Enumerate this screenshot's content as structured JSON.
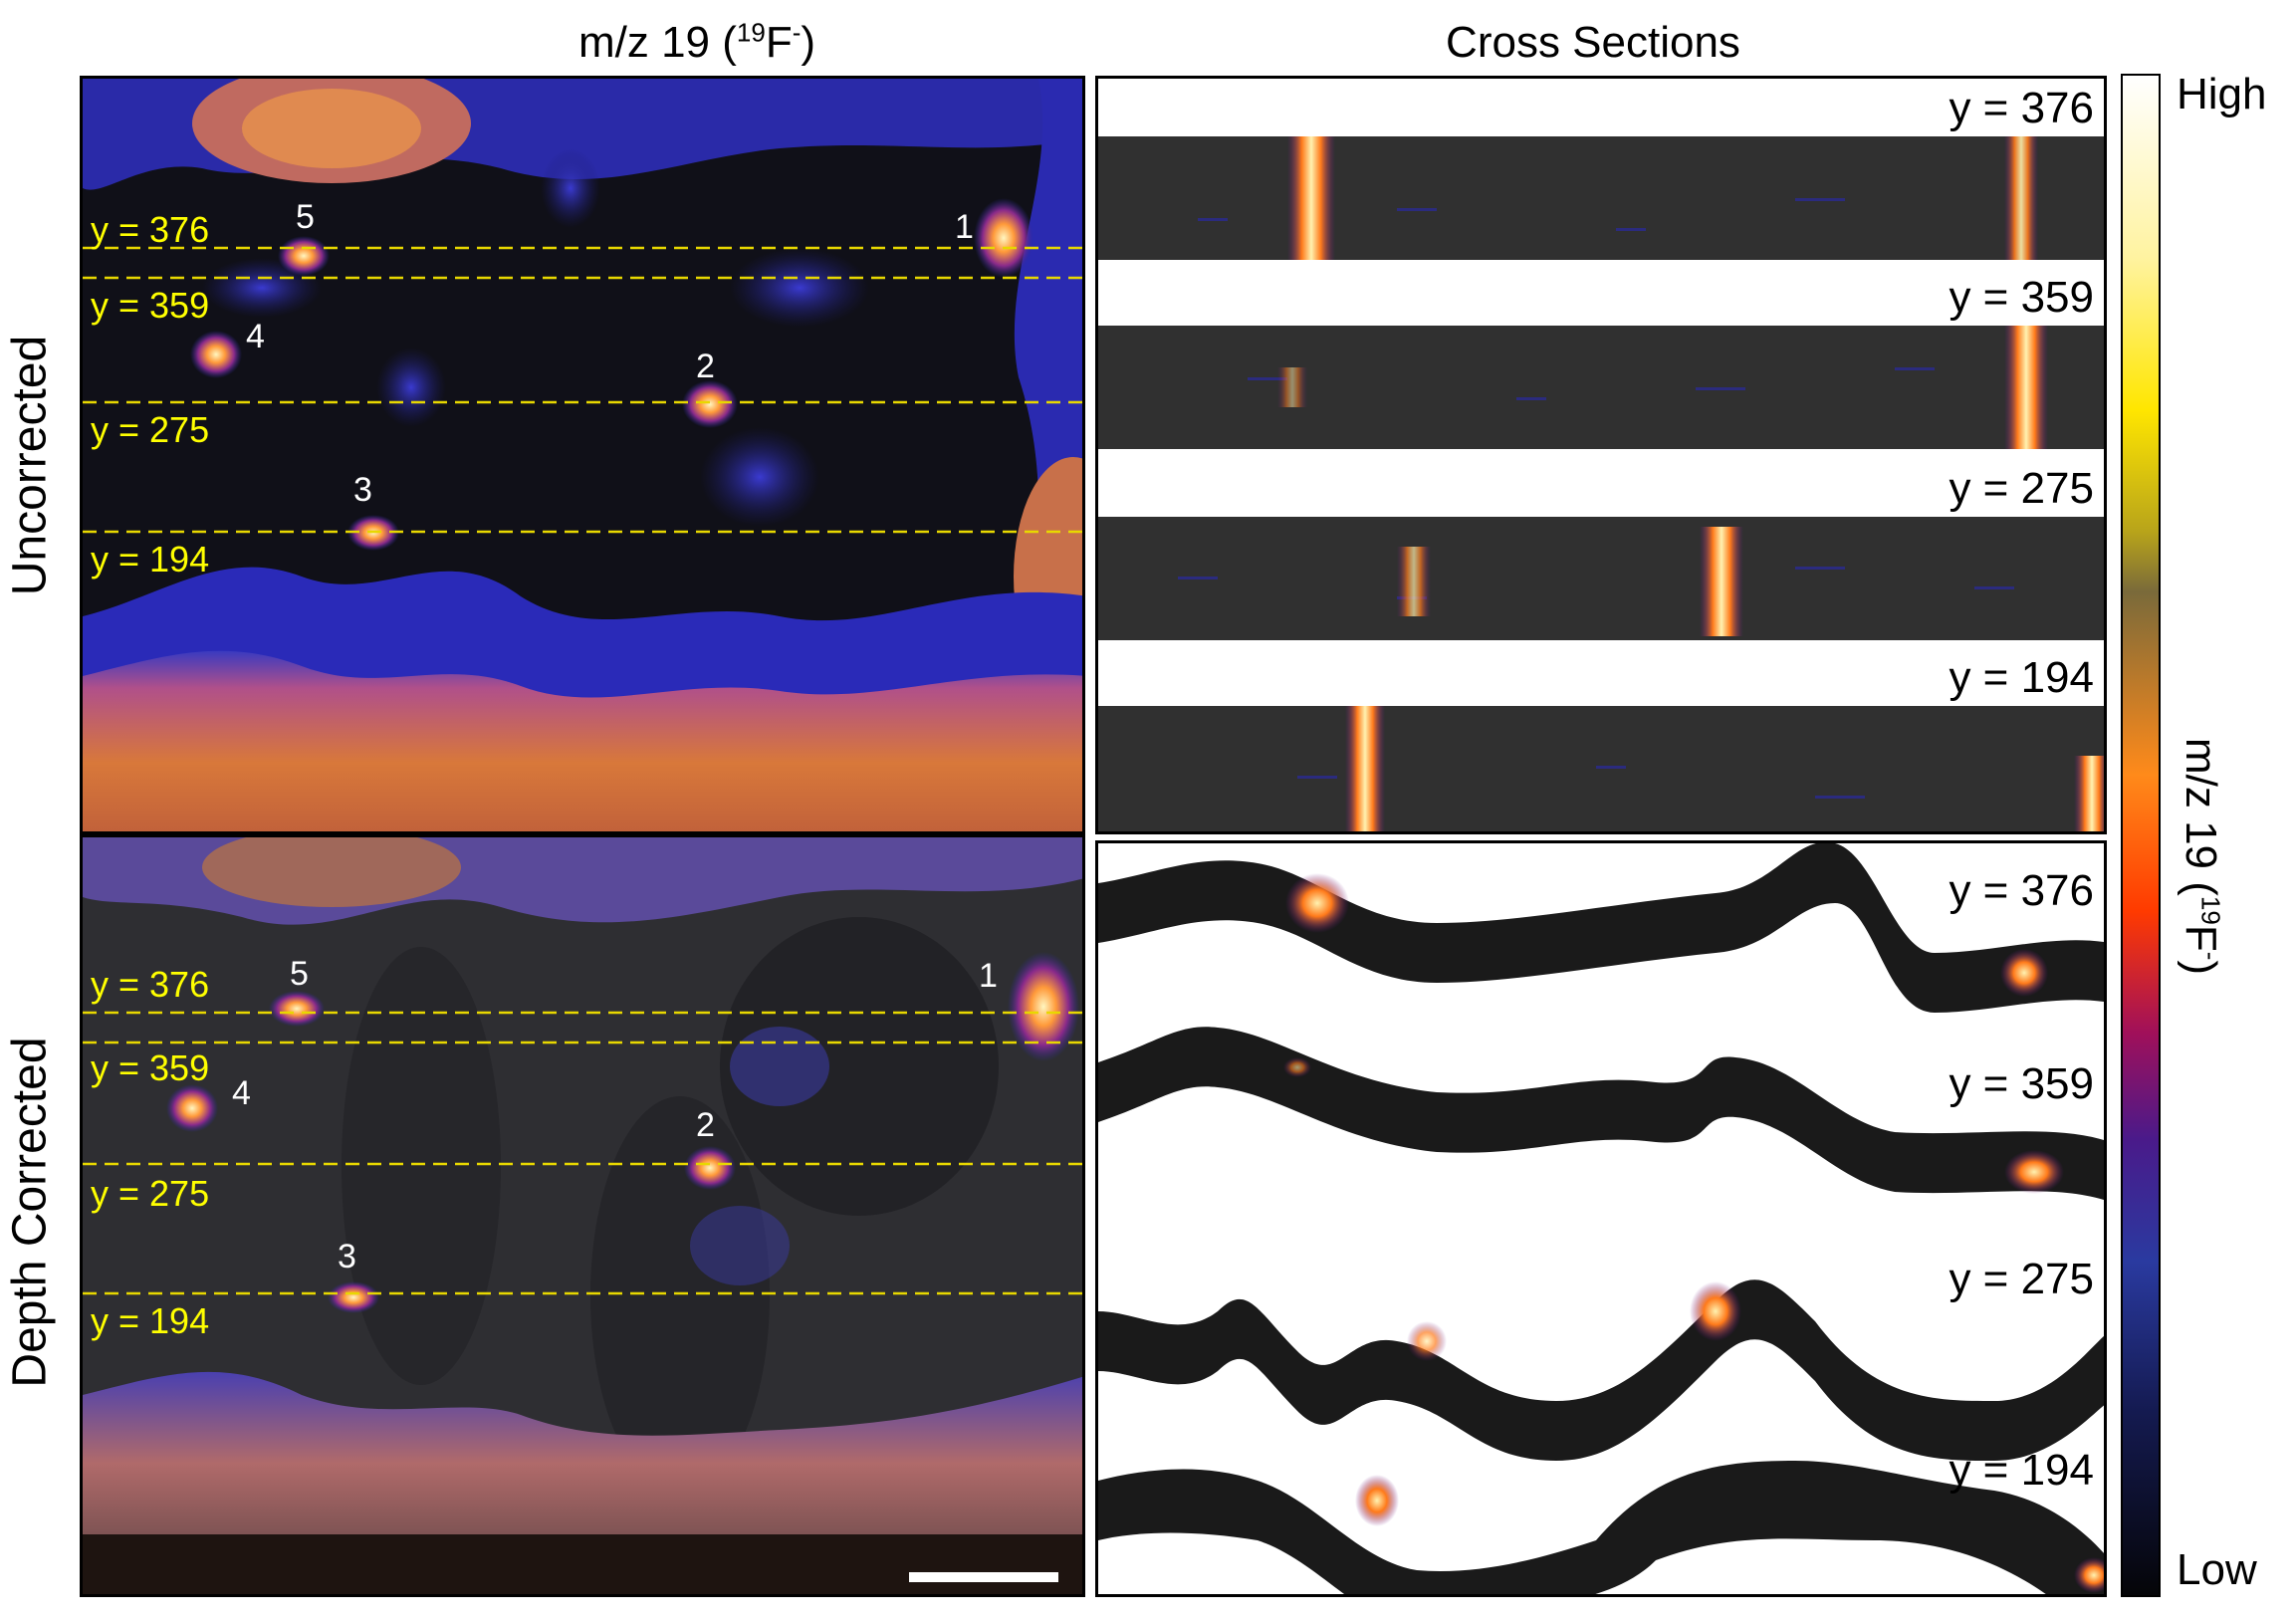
{
  "titles": {
    "left_prefix": "m/z 19 (",
    "left_iso": "19",
    "left_ion": "F",
    "left_charge": "-",
    "left_suffix": ")",
    "right": "Cross Sections"
  },
  "rows": {
    "top": "Uncorrected",
    "bottom": "Depth Corrected"
  },
  "colorbar": {
    "high": "High",
    "low": "Low",
    "title_prefix": "m/z 19 (",
    "title_iso": "19",
    "title_ion": "F",
    "title_charge": "-",
    "title_suffix": ")"
  },
  "y_lines": [
    "y = 376",
    "y = 359",
    "y = 275",
    "y = 194"
  ],
  "points": [
    "1",
    "2",
    "3",
    "4",
    "5"
  ],
  "cross_section_labels": [
    "y = 376",
    "y = 359",
    "y = 275",
    "y = 194"
  ]
}
